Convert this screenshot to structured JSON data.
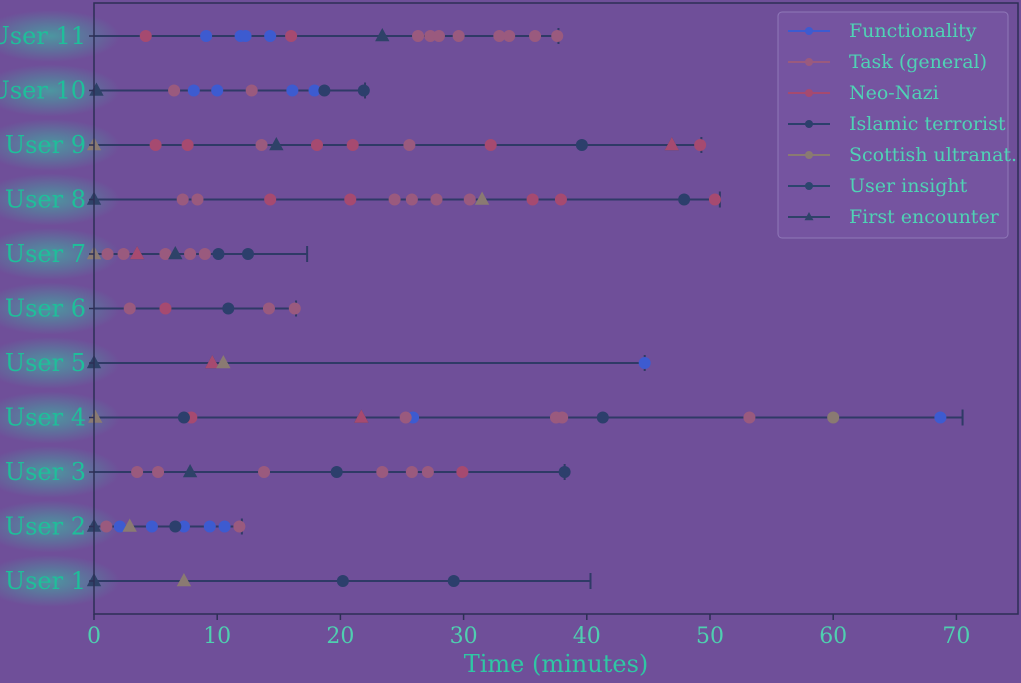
{
  "chart_data": {
    "type": "scatter",
    "title": "",
    "xlabel": "Time (minutes)",
    "ylabel": "",
    "xlim": [
      0,
      75
    ],
    "xticks": [
      0,
      10,
      20,
      30,
      40,
      50,
      60,
      70
    ],
    "grid": false,
    "legend_position": "top-right",
    "users": [
      "User 1",
      "User 2",
      "User 3",
      "User 4",
      "User 5",
      "User 6",
      "User 7",
      "User 8",
      "User 9",
      "User 10",
      "User 11"
    ],
    "series": [
      {
        "name": "Functionality",
        "marker": "circle",
        "color": "#3d5bd0",
        "points": [
          {
            "user": "User 2",
            "x": 2.1
          },
          {
            "user": "User 2",
            "x": 4.7
          },
          {
            "user": "User 2",
            "x": 7.3
          },
          {
            "user": "User 2",
            "x": 9.4
          },
          {
            "user": "User 2",
            "x": 10.6
          },
          {
            "user": "User 4",
            "x": 25.9
          },
          {
            "user": "User 4",
            "x": 68.7
          },
          {
            "user": "User 5",
            "x": 44.7
          },
          {
            "user": "User 10",
            "x": 8.1
          },
          {
            "user": "User 10",
            "x": 10.0
          },
          {
            "user": "User 10",
            "x": 16.1
          },
          {
            "user": "User 10",
            "x": 17.9
          },
          {
            "user": "User 11",
            "x": 9.1
          },
          {
            "user": "User 11",
            "x": 11.9
          },
          {
            "user": "User 11",
            "x": 12.3
          },
          {
            "user": "User 11",
            "x": 14.3
          }
        ]
      },
      {
        "name": "Task (general)",
        "marker": "circle",
        "color": "#9a5a7e",
        "points": [
          {
            "user": "User 2",
            "x": 1.0
          },
          {
            "user": "User 2",
            "x": 11.8
          },
          {
            "user": "User 3",
            "x": 3.5
          },
          {
            "user": "User 3",
            "x": 5.2
          },
          {
            "user": "User 3",
            "x": 13.8
          },
          {
            "user": "User 3",
            "x": 23.4
          },
          {
            "user": "User 3",
            "x": 25.8
          },
          {
            "user": "User 3",
            "x": 27.1
          },
          {
            "user": "User 4",
            "x": 25.3
          },
          {
            "user": "User 4",
            "x": 37.5
          },
          {
            "user": "User 4",
            "x": 38.0
          },
          {
            "user": "User 4",
            "x": 53.2
          },
          {
            "user": "User 6",
            "x": 2.9
          },
          {
            "user": "User 6",
            "x": 14.2
          },
          {
            "user": "User 6",
            "x": 16.3
          },
          {
            "user": "User 7",
            "x": 1.1
          },
          {
            "user": "User 7",
            "x": 2.4
          },
          {
            "user": "User 7",
            "x": 5.8
          },
          {
            "user": "User 7",
            "x": 7.8
          },
          {
            "user": "User 7",
            "x": 9.0
          },
          {
            "user": "User 8",
            "x": 7.2
          },
          {
            "user": "User 8",
            "x": 8.4
          },
          {
            "user": "User 8",
            "x": 24.4
          },
          {
            "user": "User 8",
            "x": 25.8
          },
          {
            "user": "User 8",
            "x": 27.8
          },
          {
            "user": "User 8",
            "x": 30.5
          },
          {
            "user": "User 9",
            "x": 13.6
          },
          {
            "user": "User 9",
            "x": 25.6
          },
          {
            "user": "User 10",
            "x": 6.5
          },
          {
            "user": "User 10",
            "x": 12.8
          },
          {
            "user": "User 11",
            "x": 26.3
          },
          {
            "user": "User 11",
            "x": 27.3
          },
          {
            "user": "User 11",
            "x": 28.0
          },
          {
            "user": "User 11",
            "x": 29.6
          },
          {
            "user": "User 11",
            "x": 32.9
          },
          {
            "user": "User 11",
            "x": 33.7
          },
          {
            "user": "User 11",
            "x": 35.8
          },
          {
            "user": "User 11",
            "x": 37.6
          }
        ]
      },
      {
        "name": "Neo-Nazi",
        "marker": "circle",
        "color": "#a64a70",
        "points": [
          {
            "user": "User 3",
            "x": 29.9
          },
          {
            "user": "User 4",
            "x": 7.9
          },
          {
            "user": "User 6",
            "x": 5.8
          },
          {
            "user": "User 8",
            "x": 14.3
          },
          {
            "user": "User 8",
            "x": 20.8
          },
          {
            "user": "User 8",
            "x": 35.6
          },
          {
            "user": "User 8",
            "x": 37.9
          },
          {
            "user": "User 8",
            "x": 50.4
          },
          {
            "user": "User 9",
            "x": 5.0
          },
          {
            "user": "User 9",
            "x": 7.6
          },
          {
            "user": "User 9",
            "x": 18.1
          },
          {
            "user": "User 9",
            "x": 21.0
          },
          {
            "user": "User 9",
            "x": 32.2
          },
          {
            "user": "User 9",
            "x": 49.2
          },
          {
            "user": "User 11",
            "x": 4.2
          },
          {
            "user": "User 11",
            "x": 16.0
          }
        ]
      },
      {
        "name": "Islamic terrorist",
        "marker": "circle",
        "color": "#2c3f6c",
        "points": [
          {
            "user": "User 1",
            "x": 20.2
          },
          {
            "user": "User 1",
            "x": 29.2
          },
          {
            "user": "User 2",
            "x": 6.6
          },
          {
            "user": "User 3",
            "x": 19.7
          },
          {
            "user": "User 3",
            "x": 38.2
          },
          {
            "user": "User 4",
            "x": 7.3
          },
          {
            "user": "User 4",
            "x": 41.3
          },
          {
            "user": "User 6",
            "x": 10.9
          },
          {
            "user": "User 7",
            "x": 10.1
          },
          {
            "user": "User 7",
            "x": 12.5
          },
          {
            "user": "User 8",
            "x": 47.9
          },
          {
            "user": "User 9",
            "x": 39.6
          },
          {
            "user": "User 10",
            "x": 18.7
          },
          {
            "user": "User 10",
            "x": 21.9
          }
        ]
      },
      {
        "name": "Scottish ultranat.",
        "marker": "circle",
        "color": "#8a7a72",
        "points": [
          {
            "user": "User 4",
            "x": 60.0
          }
        ]
      },
      {
        "name": "User insight",
        "marker": "circle",
        "color": "#2c456e",
        "points": []
      },
      {
        "name": "First encounter",
        "marker": "triangle",
        "color": "#2e4268",
        "points": [
          {
            "user": "User 1",
            "x": 0.0
          },
          {
            "user": "User 2",
            "x": 0.0
          },
          {
            "user": "User 3",
            "x": 7.8
          },
          {
            "user": "User 4",
            "x": 21.7
          },
          {
            "user": "User 5",
            "x": 0.0
          },
          {
            "user": "User 5",
            "x": 9.6
          },
          {
            "user": "User 7",
            "x": 3.5
          },
          {
            "user": "User 7",
            "x": 6.6
          },
          {
            "user": "User 8",
            "x": 0.0
          },
          {
            "user": "User 9",
            "x": 14.8
          },
          {
            "user": "User 9",
            "x": 46.9
          },
          {
            "user": "User 10",
            "x": 0.2
          },
          {
            "user": "User 11",
            "x": 23.4
          }
        ]
      }
    ],
    "first_encounter_triangles": [
      {
        "user": "User 1",
        "x": 7.3,
        "color": "#8a7a72"
      },
      {
        "user": "User 2",
        "x": 2.9,
        "color": "#8a7a72"
      },
      {
        "user": "User 4",
        "x": 0.1,
        "color": "#8a7a72"
      },
      {
        "user": "User 5",
        "x": 9.6,
        "color": "#a64a70"
      },
      {
        "user": "User 5",
        "x": 10.5,
        "color": "#8a7a72"
      },
      {
        "user": "User 7",
        "x": 0.0,
        "color": "#8a7a72"
      },
      {
        "user": "User 7",
        "x": 3.5,
        "color": "#a64a70"
      },
      {
        "user": "User 8",
        "x": 31.5,
        "color": "#8a7a72"
      },
      {
        "user": "User 9",
        "x": 0.0,
        "color": "#8a7a72"
      },
      {
        "user": "User 9",
        "x": 46.9,
        "color": "#a64a70"
      },
      {
        "user": "User 4",
        "x": 21.7,
        "color": "#a64a70"
      }
    ],
    "session_ends": [
      {
        "user": "User 1",
        "x": 40.3
      },
      {
        "user": "User 2",
        "x": 12.0
      },
      {
        "user": "User 3",
        "x": 38.2
      },
      {
        "user": "User 4",
        "x": 70.5
      },
      {
        "user": "User 5",
        "x": 44.7
      },
      {
        "user": "User 6",
        "x": 16.4
      },
      {
        "user": "User 7",
        "x": 17.3
      },
      {
        "user": "User 8",
        "x": 50.8
      },
      {
        "user": "User 9",
        "x": 49.3
      },
      {
        "user": "User 10",
        "x": 22.0
      },
      {
        "user": "User 11",
        "x": 37.7
      }
    ]
  },
  "colors": {
    "background": "#6f4f99",
    "axis_line": "#2d2f55",
    "session_line": "#2f3a66",
    "label_text": "#1fbf9a"
  }
}
